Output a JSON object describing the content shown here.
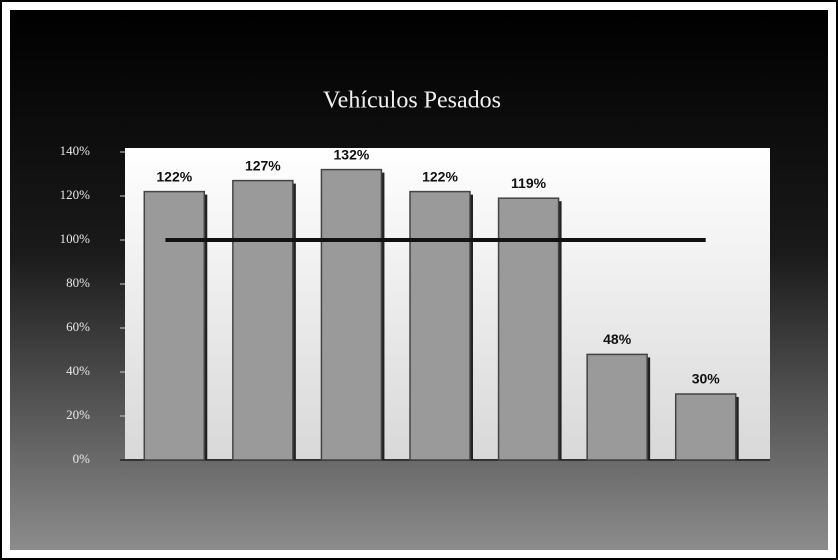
{
  "chart_data": {
    "type": "bar",
    "title": "Vehículos Pesados",
    "categories": [
      null,
      null,
      null,
      null,
      null,
      null,
      null
    ],
    "values": [
      122,
      127,
      132,
      122,
      119,
      48,
      30
    ],
    "value_labels": [
      "122%",
      "127%",
      "132%",
      "122%",
      "119%",
      "48%",
      "30%"
    ],
    "color": "#9a9a9a",
    "reference_line": 100,
    "ylim": [
      0,
      140
    ],
    "yticks": [
      {
        "value": 0,
        "label": "0%"
      },
      {
        "value": 20,
        "label": "20%"
      },
      {
        "value": 40,
        "label": "40%"
      },
      {
        "value": 60,
        "label": "60%"
      },
      {
        "value": 80,
        "label": "80%"
      },
      {
        "value": 100,
        "label": "100%"
      },
      {
        "value": 120,
        "label": "120%"
      },
      {
        "value": 140,
        "label": "140%"
      }
    ]
  }
}
